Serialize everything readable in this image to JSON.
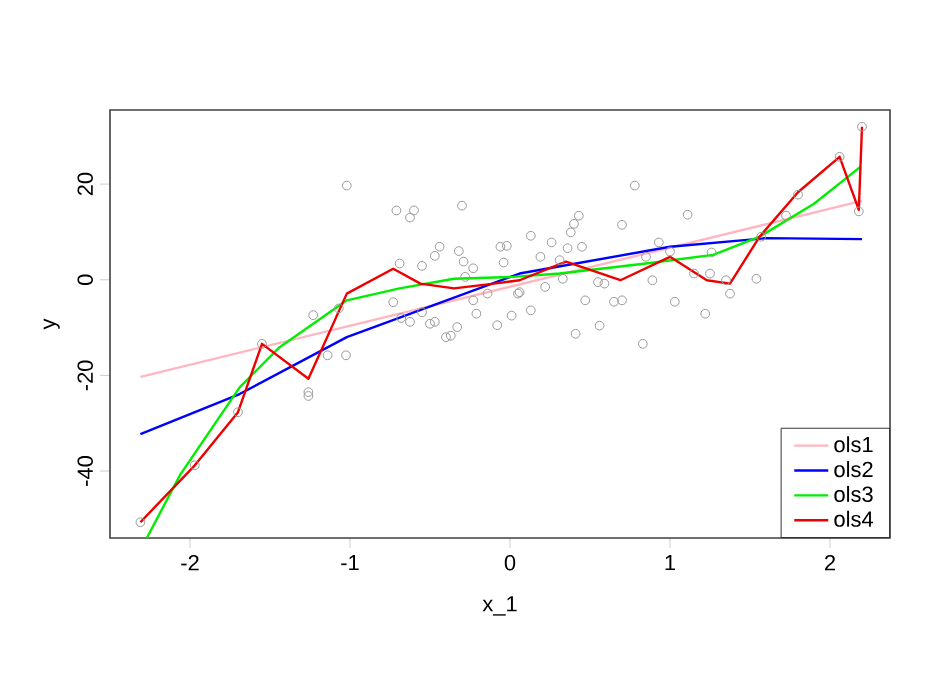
{
  "chart_data": {
    "type": "scatter",
    "xlabel": "x_1",
    "ylabel": "y",
    "xlim": [
      -2.5,
      2.375
    ],
    "ylim": [
      -54,
      35.5
    ],
    "xticks": [
      -2,
      -1,
      0,
      1,
      2
    ],
    "yticks": [
      -40,
      -20,
      0,
      20
    ],
    "grid": false,
    "legend": "bottom right",
    "series": [
      {
        "marker": "circle",
        "color": "#999999",
        "x": [
          -2.31,
          -1.97,
          -1.7,
          -1.55,
          -1.26,
          -1.26,
          -1.23,
          -1.14,
          -1.07,
          -1.025,
          -1.02,
          -0.71,
          -0.6,
          -0.625,
          -0.3,
          -0.69,
          -0.73,
          -0.68,
          -0.625,
          -0.55,
          -0.55,
          -0.5,
          -0.47,
          -0.44,
          -0.47,
          -0.4,
          -0.37,
          -0.33,
          -0.32,
          -0.29,
          -0.28,
          -0.23,
          -0.23,
          -0.21,
          -0.14,
          -0.08,
          -0.06,
          -0.02,
          -0.04,
          0.01,
          0.05,
          0.06,
          0.13,
          0.13,
          0.19,
          0.22,
          0.26,
          0.33,
          0.31,
          0.36,
          0.38,
          0.4,
          0.43,
          0.45,
          0.47,
          0.41,
          0.56,
          0.55,
          0.59,
          0.65,
          0.7,
          0.7,
          0.78,
          0.83,
          0.85,
          0.89,
          0.93,
          1.0,
          1.03,
          1.11,
          1.15,
          1.22,
          1.26,
          1.25,
          1.35,
          1.375,
          1.54,
          1.57,
          1.725,
          1.8,
          2.06,
          2.18,
          2.2
        ],
        "values": [
          -50.7,
          -38.8,
          -27.7,
          -13.4,
          -23.5,
          -24.3,
          -7.4,
          -15.8,
          -6.0,
          -15.8,
          19.7,
          14.5,
          14.5,
          13.0,
          15.5,
          3.4,
          -4.7,
          -8.0,
          -8.8,
          2.9,
          -6.8,
          -9.2,
          -8.8,
          6.9,
          5.0,
          -12.0,
          -11.7,
          -9.9,
          6.0,
          3.8,
          0.6,
          2.4,
          -4.3,
          -7.1,
          -2.9,
          -9.5,
          6.9,
          7.1,
          3.6,
          -7.5,
          -2.9,
          -2.6,
          -6.4,
          9.2,
          4.8,
          -1.5,
          7.8,
          0.2,
          4.1,
          6.6,
          9.9,
          11.7,
          13.4,
          6.9,
          -4.3,
          -11.3,
          -9.6,
          -0.5,
          -0.8,
          -4.6,
          -4.3,
          11.5,
          19.7,
          -13.4,
          4.8,
          -0.1,
          7.8,
          5.9,
          -4.6,
          13.6,
          1.3,
          -7.1,
          5.7,
          1.3,
          -0.1,
          -2.9,
          0.2,
          9.0,
          13.4,
          17.8,
          25.7,
          14.3,
          32.0
        ]
      },
      {
        "type": "line",
        "name": "ols1",
        "marker": "none",
        "color": "#ffb6c1",
        "x": [
          -2.31,
          2.2
        ],
        "values": [
          -20.3,
          16.5
        ]
      },
      {
        "type": "line",
        "name": "ols2",
        "marker": "none",
        "color": "#0000ff",
        "x": [
          -2.31,
          -1.69,
          -1.02,
          0.06,
          1.0,
          1.6,
          2.2
        ],
        "values": [
          -32.3,
          -23.9,
          -12.0,
          1.3,
          6.9,
          8.7,
          8.5
        ]
      },
      {
        "type": "line",
        "name": "ols3",
        "marker": "none",
        "color": "#00ee00",
        "x": [
          -2.27,
          -2.06,
          -1.69,
          -1.44,
          -1.02,
          -0.69,
          -0.35,
          0.02,
          0.31,
          0.85,
          1.27,
          1.56,
          1.9,
          2.19
        ],
        "values": [
          -54,
          -40.7,
          -22.5,
          -14.1,
          -4.3,
          -1.8,
          0.2,
          0.6,
          1.3,
          3.4,
          5.2,
          9.0,
          15.9,
          23.6
        ]
      },
      {
        "type": "line",
        "name": "ols4",
        "marker": "none",
        "color": "#ee0000",
        "x": [
          -2.31,
          -1.97,
          -1.7,
          -1.55,
          -1.26,
          -1.02,
          -0.73,
          -0.56,
          -0.35,
          -0.1,
          0.06,
          0.35,
          0.69,
          1.0,
          1.23,
          1.375,
          1.56,
          1.8,
          2.06,
          2.18,
          2.2
        ],
        "values": [
          -50.7,
          -38.8,
          -27.7,
          -13.4,
          -20.7,
          -2.9,
          2.3,
          -0.8,
          -1.8,
          -0.8,
          -0.1,
          3.8,
          -0.1,
          4.8,
          -0.1,
          -0.8,
          9.0,
          18.3,
          25.7,
          14.6,
          32.0
        ]
      }
    ]
  }
}
